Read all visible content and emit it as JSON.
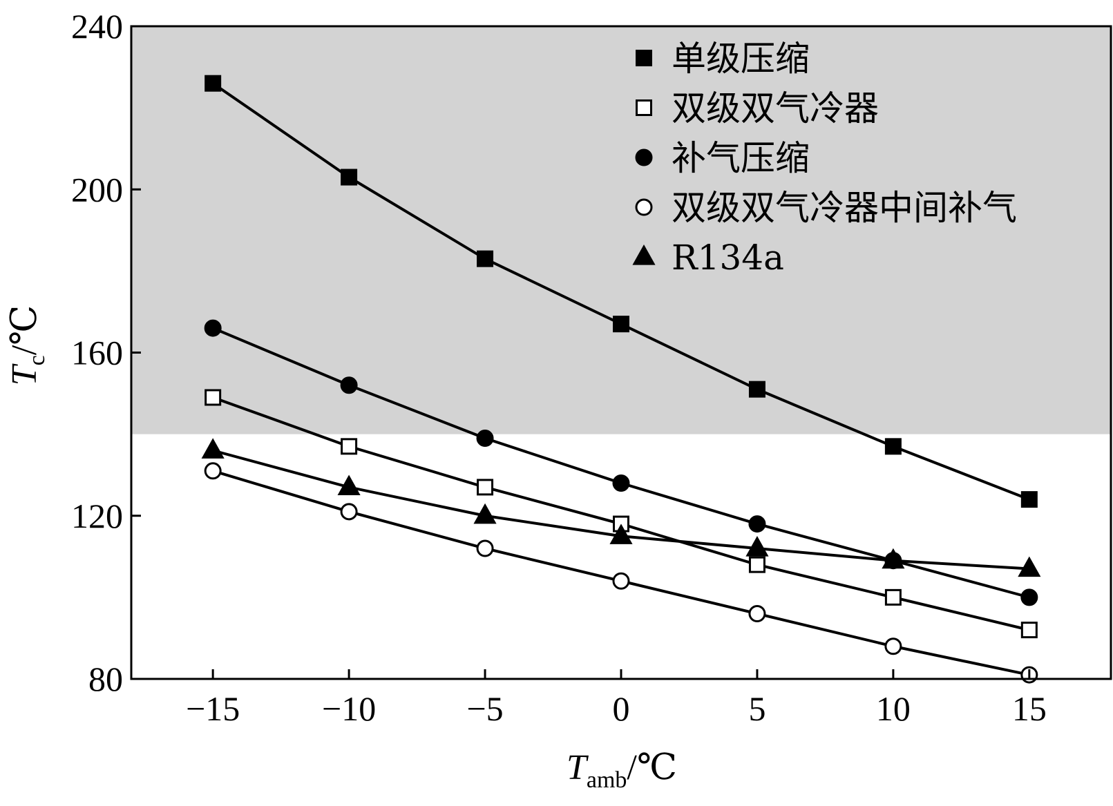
{
  "chart_data": {
    "type": "line",
    "title": "",
    "xlabel": {
      "main": "T",
      "sub": "amb",
      "unit": "/℃"
    },
    "ylabel": {
      "main": "T",
      "sub": "c",
      "unit": "/℃"
    },
    "xlim": [
      -18,
      18
    ],
    "ylim": [
      80,
      240
    ],
    "x": [
      -15,
      -10,
      -5,
      0,
      5,
      10,
      15
    ],
    "x_tick_labels": [
      "−15",
      "−10",
      "−5",
      "0",
      "5",
      "10",
      "15"
    ],
    "y_ticks": [
      80,
      120,
      160,
      200,
      240
    ],
    "y_tick_labels": [
      "80",
      "120",
      "160",
      "200",
      "240"
    ],
    "shaded_region": {
      "y_from": 140,
      "y_to": 240,
      "color": "#d3d3d3"
    },
    "grid": false,
    "legend_position": "top-right",
    "series": [
      {
        "name": "单级压缩",
        "marker": "square-filled",
        "values": [
          226,
          203,
          183,
          167,
          151,
          137,
          124
        ]
      },
      {
        "name": "双级双气冷器",
        "marker": "square-open",
        "values": [
          149,
          137,
          127,
          118,
          108,
          100,
          92
        ]
      },
      {
        "name": "补气压缩",
        "marker": "circle-filled",
        "values": [
          166,
          152,
          139,
          128,
          118,
          109,
          100
        ]
      },
      {
        "name": "双级双气冷器中间补气",
        "marker": "circle-open",
        "values": [
          131,
          121,
          112,
          104,
          96,
          88,
          81
        ]
      },
      {
        "name": "R134a",
        "marker": "triangle-filled",
        "values": [
          136,
          127,
          120,
          115,
          112,
          109,
          107
        ]
      }
    ]
  }
}
